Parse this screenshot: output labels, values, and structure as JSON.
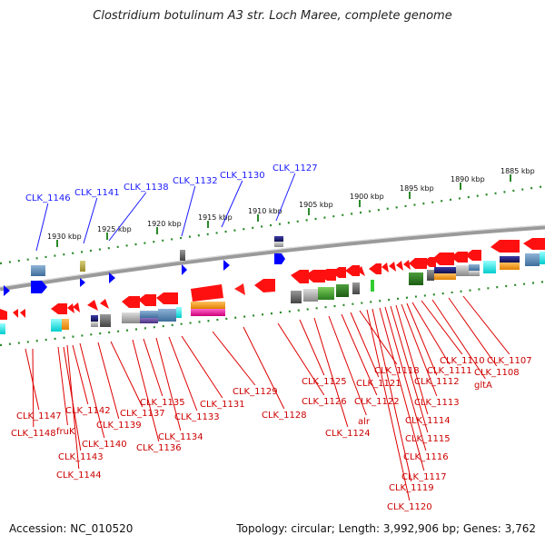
{
  "title": "Clostridium botulinum A3 str. Loch Maree, complete genome",
  "footer": {
    "accession": "Accession: NC_010520",
    "topology": "Topology: circular; Length: 3,992,906 bp; Genes: 3,762"
  },
  "ticks": [
    "1930 kbp",
    "1925 kbp",
    "1920 kbp",
    "1915 kbp",
    "1910 kbp",
    "1905 kbp",
    "1900 kbp",
    "1895 kbp",
    "1890 kbp",
    "1885 kbp"
  ],
  "labels_top": [
    "CLK_1146",
    "CLK_1141",
    "CLK_1138",
    "CLK_1132",
    "CLK_1130",
    "CLK_1127"
  ],
  "labels_bottom": [
    "CLK_1147",
    "CLK_1148",
    "fruK",
    "CLK_1143",
    "CLK_1144",
    "CLK_1142",
    "CLK_1140",
    "CLK_1139",
    "CLK_1137",
    "CLK_1136",
    "CLK_1135",
    "CLK_1134",
    "CLK_1133",
    "CLK_1131",
    "CLK_1129",
    "CLK_1128",
    "CLK_1126",
    "CLK_1125",
    "CLK_1124",
    "alr",
    "CLK_1122",
    "CLK_1121",
    "CLK_1118",
    "CLK_1120",
    "CLK_1119",
    "CLK_1117",
    "CLK_1116",
    "CLK_1115",
    "CLK_1114",
    "CLK_1113",
    "CLK_1112",
    "CLK_1111",
    "CLK_1110",
    "gltA",
    "CLK_1108",
    "CLK_1107"
  ],
  "colors": {
    "gene_forward": "#ff0000",
    "gene_reverse": "#0000ff",
    "backbone": "#888888",
    "tick_dots": "#2a8a2a",
    "label_top": "#1a1aff",
    "label_bottom": "#cc0000"
  }
}
